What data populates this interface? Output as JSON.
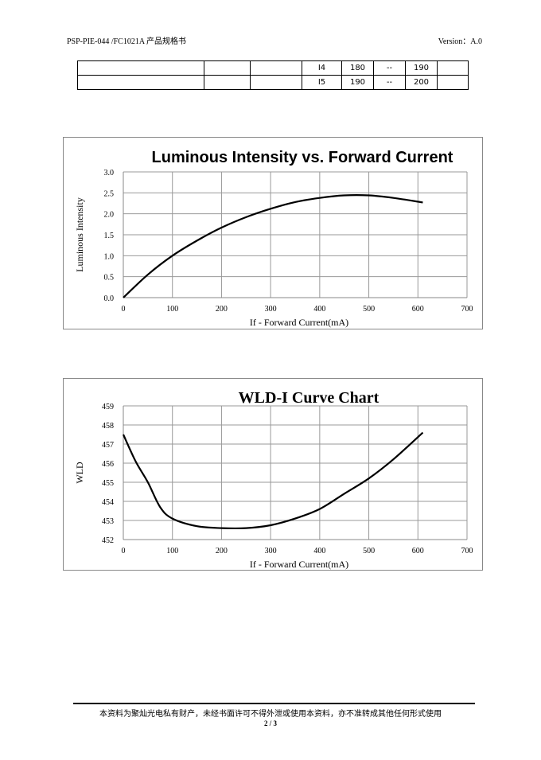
{
  "header": {
    "doc_id": "PSP-PIE-044 /FC1021A 产品规格书",
    "version": "Version：A.0"
  },
  "table": {
    "rows": [
      [
        "",
        "",
        "",
        "I4",
        "180",
        "--",
        "190",
        ""
      ],
      [
        "",
        "",
        "",
        "I5",
        "190",
        "--",
        "200",
        ""
      ]
    ]
  },
  "chart_data": [
    {
      "type": "line",
      "title": "Luminous Intensity vs. Forward Current",
      "xlabel": "If - Forward Current(mA)",
      "ylabel": "Luminous Intensity",
      "xlim": [
        0,
        700
      ],
      "ylim": [
        0,
        3.0
      ],
      "xticks": [
        "0",
        "100",
        "200",
        "300",
        "400",
        "500",
        "600",
        "700"
      ],
      "yticks": [
        "0.0",
        "0.5",
        "1.0",
        "1.5",
        "2.0",
        "2.5",
        "3.0"
      ],
      "grid": true,
      "x": [
        0,
        50,
        100,
        150,
        200,
        250,
        300,
        350,
        400,
        450,
        500,
        550,
        610
      ],
      "y": [
        0,
        0.55,
        1.0,
        1.36,
        1.67,
        1.92,
        2.12,
        2.28,
        2.38,
        2.44,
        2.44,
        2.38,
        2.27
      ]
    },
    {
      "type": "line",
      "title": "WLD-I Curve Chart",
      "xlabel": "If - Forward Current(mA)",
      "ylabel": "WLD",
      "xlim": [
        0,
        700
      ],
      "ylim": [
        452,
        459
      ],
      "xticks": [
        "0",
        "100",
        "200",
        "300",
        "400",
        "500",
        "600",
        "700"
      ],
      "yticks": [
        "452",
        "453",
        "454",
        "455",
        "456",
        "457",
        "458",
        "459"
      ],
      "grid": true,
      "x": [
        0,
        25,
        50,
        75,
        100,
        150,
        200,
        250,
        300,
        350,
        400,
        450,
        500,
        550,
        610
      ],
      "y": [
        457.5,
        456.1,
        455.0,
        453.7,
        453.1,
        452.7,
        452.6,
        452.6,
        452.75,
        453.1,
        453.6,
        454.4,
        455.2,
        456.2,
        457.6
      ]
    }
  ],
  "footer": {
    "notice": "本资料为聚灿光电私有财产，未经书面许可不得外泄或使用本资料，亦不准转成其他任何形式使用",
    "page": "2 / 3"
  }
}
